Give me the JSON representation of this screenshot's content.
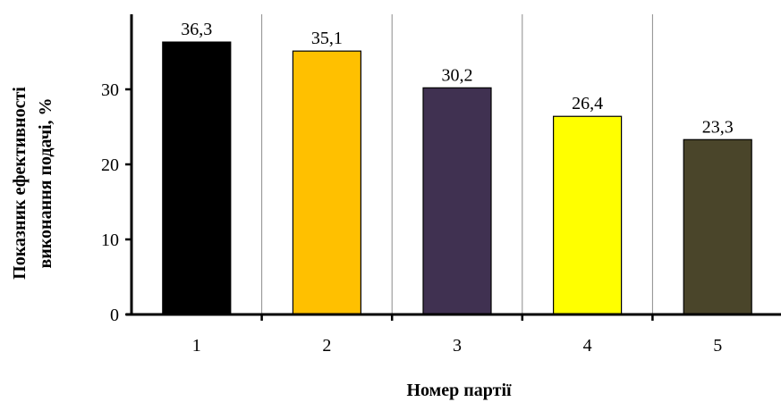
{
  "chart_data": {
    "type": "bar",
    "categories": [
      "1",
      "2",
      "3",
      "4",
      "5"
    ],
    "values": [
      36.3,
      35.1,
      30.2,
      26.4,
      23.3
    ],
    "data_labels": [
      "36,3",
      "35,1",
      "30,2",
      "26,4",
      "23,3"
    ],
    "colors": [
      "#000000",
      "#FFC000",
      "#403151",
      "#FFFF00",
      "#4A452A"
    ],
    "title": "",
    "xlabel": "Номер партії",
    "ylabel_lines": [
      "Показник ефективності",
      "виконання подачі, %"
    ],
    "ylim": [
      0,
      40
    ],
    "yticks": [
      0,
      10,
      20,
      30
    ],
    "ytick_labels": [
      "0",
      "10",
      "20",
      "30"
    ],
    "grid": "vertical separators between categories",
    "legend": "none"
  }
}
